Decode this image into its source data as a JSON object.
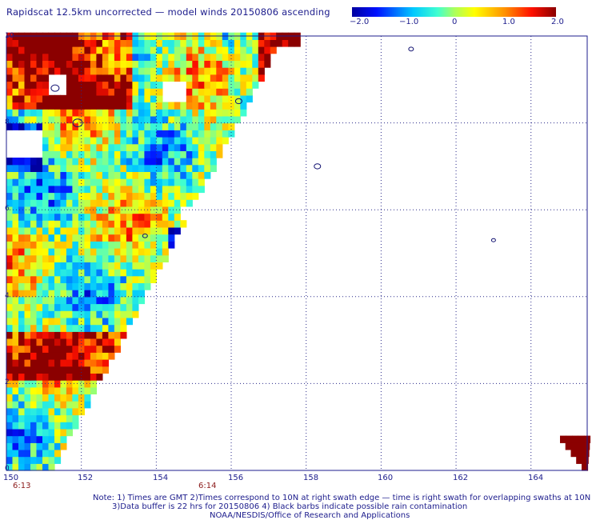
{
  "title": "Rapidscat 12.5km uncorrected — model winds 20150806 ascending",
  "colorbar": {
    "ticks": [
      "−2.0",
      "−1.0",
      "0",
      "1.0",
      "2.0"
    ],
    "range": [
      -2.0,
      2.0
    ]
  },
  "map": {
    "lon_range": [
      150,
      165.5
    ],
    "lat_range": [
      0,
      10
    ],
    "x_ticks": [
      "150",
      "152",
      "154",
      "156",
      "158",
      "160",
      "162",
      "164"
    ],
    "x_tick_values": [
      150,
      152,
      154,
      156,
      158,
      160,
      162,
      164
    ],
    "y_ticks": [
      "0",
      "2",
      "4",
      "6",
      "8",
      "10"
    ],
    "y_tick_values": [
      0,
      2,
      4,
      6,
      8,
      10
    ],
    "grid": true,
    "time_labels": [
      {
        "text": "6:13",
        "lon": 150.4
      },
      {
        "text": "6:14",
        "lon": 155.2
      }
    ]
  },
  "notes": [
    "Note: 1) Times are GMT 2)Times correspond to 10N at right swath edge — time is right swath for overlapping swaths at 10N",
    "3)Data buffer is 22 hrs for 20150806 4) Black barbs indicate possible rain contamination",
    "NOAA/NESDIS/Office of Research and Applications"
  ]
}
